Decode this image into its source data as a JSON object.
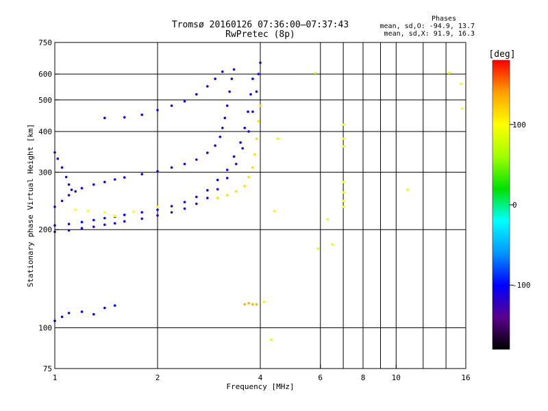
{
  "chart_data": {
    "type": "scatter",
    "title": "Tromsø 20160126 07:36:00–07:37:43",
    "subtitle": "RwPretec (8p)",
    "xlabel": "Frequency [MHz]",
    "ylabel": "Stationary phase Virtual Height [km]",
    "x_scale": "log",
    "y_scale": "log",
    "xlim": [
      1,
      16
    ],
    "ylim": [
      75,
      750
    ],
    "x_ticks": [
      1,
      2,
      4,
      6,
      8,
      10,
      16
    ],
    "y_ticks": [
      75,
      100,
      200,
      300,
      400,
      500,
      600,
      750
    ],
    "grid": true,
    "stats_header": "Phases",
    "stats_o": "mean, sd,O: -94.9, 13.7",
    "stats_x": "mean, sd,X:  91.9, 16.3",
    "colorbar": {
      "label": "[deg]",
      "min": -180,
      "max": 180,
      "ticks": [
        100,
        0,
        -100
      ],
      "colors": [
        "#000000",
        "#5a008c",
        "#0000ff",
        "#0096ff",
        "#00ffff",
        "#00e000",
        "#a0ff00",
        "#ffff00",
        "#ffa000",
        "#ff0000"
      ]
    },
    "series": [
      {
        "points": [
          [
            1.0,
            235
          ],
          [
            1.05,
            245
          ],
          [
            1.1,
            255
          ],
          [
            1.15,
            262
          ],
          [
            1.2,
            268
          ],
          [
            1.3,
            275
          ],
          [
            1.4,
            280
          ],
          [
            1.5,
            285
          ],
          [
            1.6,
            289
          ],
          [
            1.8,
            296
          ],
          [
            2.0,
            302
          ],
          [
            2.2,
            310
          ],
          [
            2.4,
            318
          ],
          [
            2.6,
            328
          ],
          [
            2.8,
            344
          ],
          [
            2.95,
            362
          ],
          [
            3.05,
            385
          ],
          [
            3.1,
            410
          ],
          [
            3.15,
            440
          ],
          [
            3.2,
            480
          ],
          [
            3.25,
            530
          ],
          [
            3.3,
            580
          ],
          [
            3.35,
            620
          ]
        ],
        "phase": -110
      },
      {
        "points": [
          [
            1.0,
            206
          ],
          [
            1.1,
            208
          ],
          [
            1.2,
            211
          ],
          [
            1.3,
            214
          ],
          [
            1.4,
            217
          ],
          [
            1.5,
            219
          ],
          [
            1.6,
            222
          ],
          [
            1.8,
            226
          ],
          [
            2.0,
            230
          ],
          [
            2.2,
            236
          ],
          [
            2.4,
            243
          ],
          [
            2.6,
            252
          ],
          [
            2.8,
            264
          ],
          [
            3.0,
            284
          ],
          [
            3.2,
            305
          ],
          [
            3.35,
            335
          ],
          [
            3.5,
            370
          ],
          [
            3.6,
            410
          ],
          [
            3.68,
            460
          ],
          [
            3.75,
            520
          ],
          [
            3.8,
            580
          ]
        ],
        "phase": -100
      },
      {
        "points": [
          [
            1.0,
            197
          ],
          [
            1.1,
            199
          ],
          [
            1.2,
            202
          ],
          [
            1.3,
            204
          ],
          [
            1.4,
            207
          ],
          [
            1.5,
            209
          ],
          [
            1.6,
            212
          ],
          [
            1.8,
            216
          ],
          [
            2.0,
            221
          ],
          [
            2.2,
            226
          ],
          [
            2.4,
            232
          ],
          [
            2.6,
            240
          ],
          [
            2.8,
            250
          ],
          [
            3.0,
            266
          ],
          [
            3.2,
            288
          ],
          [
            3.4,
            318
          ],
          [
            3.55,
            355
          ],
          [
            3.7,
            400
          ],
          [
            3.8,
            460
          ],
          [
            3.9,
            530
          ],
          [
            3.95,
            600
          ],
          [
            4.0,
            650
          ]
        ],
        "phase": -115
      },
      {
        "points": [
          [
            1.4,
            440
          ],
          [
            1.6,
            442
          ],
          [
            1.8,
            450
          ],
          [
            2.0,
            465
          ],
          [
            2.2,
            480
          ],
          [
            2.4,
            495
          ],
          [
            2.6,
            520
          ],
          [
            2.8,
            550
          ],
          [
            2.95,
            580
          ],
          [
            3.1,
            610
          ]
        ],
        "phase": -105
      },
      {
        "points": [
          [
            1.0,
            345
          ],
          [
            1.02,
            330
          ],
          [
            1.05,
            310
          ],
          [
            1.08,
            290
          ],
          [
            1.1,
            275
          ],
          [
            1.12,
            265
          ]
        ],
        "phase": -110
      },
      {
        "points": [
          [
            1.0,
            105
          ],
          [
            1.05,
            108
          ],
          [
            1.1,
            111
          ],
          [
            1.2,
            112
          ],
          [
            1.3,
            110
          ],
          [
            1.4,
            115
          ],
          [
            1.5,
            117
          ]
        ],
        "phase": -100
      },
      {
        "points": [
          [
            3.0,
            250
          ],
          [
            3.2,
            255
          ],
          [
            3.4,
            262
          ],
          [
            3.6,
            272
          ],
          [
            3.7,
            290
          ],
          [
            3.8,
            310
          ],
          [
            3.85,
            340
          ],
          [
            3.9,
            380
          ],
          [
            3.95,
            430
          ],
          [
            4.0,
            480
          ]
        ],
        "phase": 115
      },
      {
        "points": [
          [
            3.6,
            118
          ],
          [
            3.7,
            119
          ],
          [
            3.8,
            118
          ],
          [
            3.9,
            118
          ]
        ],
        "phase": 130
      },
      {
        "points": [
          [
            1.15,
            230
          ],
          [
            1.25,
            228
          ],
          [
            1.4,
            226
          ],
          [
            1.5,
            220
          ],
          [
            1.7,
            227
          ],
          [
            2.0,
            235
          ]
        ],
        "phase": 100
      },
      {
        "points": [
          [
            7.0,
            420
          ],
          [
            7.0,
            380
          ],
          [
            7.0,
            360
          ],
          [
            7.0,
            280
          ],
          [
            7.0,
            260
          ],
          [
            7.0,
            245
          ],
          [
            7.0,
            235
          ],
          [
            5.8,
            605
          ],
          [
            5.9,
            175
          ],
          [
            6.3,
            215
          ],
          [
            6.5,
            180
          ],
          [
            10.8,
            265
          ],
          [
            14.3,
            605
          ],
          [
            15.5,
            560
          ],
          [
            15.6,
            470
          ],
          [
            4.3,
            92
          ],
          [
            4.1,
            120
          ],
          [
            4.4,
            228
          ],
          [
            4.5,
            380
          ]
        ],
        "phase": 90
      }
    ]
  }
}
